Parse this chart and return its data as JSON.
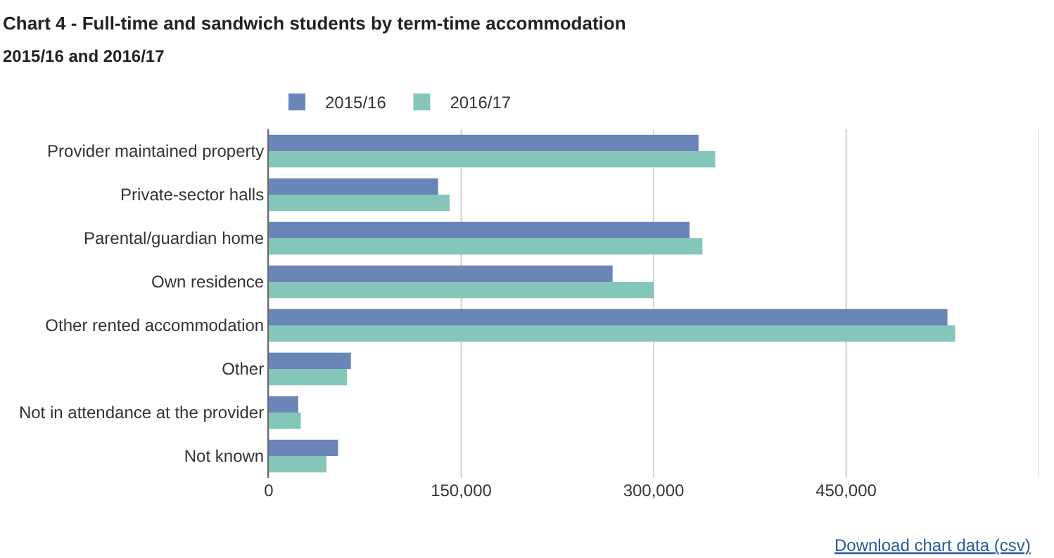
{
  "chart_data": {
    "type": "bar",
    "orientation": "horizontal",
    "title": "Chart 4 - Full-time and sandwich students by term-time accommodation",
    "subtitle": "2015/16 and 2016/17",
    "categories": [
      "Provider maintained property",
      "Private-sector halls",
      "Parental/guardian home",
      "Own residence",
      "Other rented accommodation",
      "Other",
      "Not in attendance at the provider",
      "Not known"
    ],
    "series": [
      {
        "name": "2015/16",
        "color": "#6a86b9",
        "values": [
          335000,
          132000,
          328000,
          268000,
          529000,
          64000,
          23000,
          54000
        ]
      },
      {
        "name": "2016/17",
        "color": "#84c6ba",
        "values": [
          348000,
          141000,
          338000,
          300000,
          535000,
          61000,
          25000,
          45000
        ]
      }
    ],
    "xlim": [
      0,
      600000
    ],
    "xticks": [
      0,
      {
        "value": 150000,
        "label": "150,000"
      },
      {
        "value": 300000,
        "label": "300,000"
      },
      {
        "value": 450000,
        "label": "450,000"
      },
      {
        "value": 600000,
        "label": null
      }
    ],
    "grid": "x",
    "legend": "top",
    "annotations": [
      "Download chart data (csv)"
    ]
  }
}
